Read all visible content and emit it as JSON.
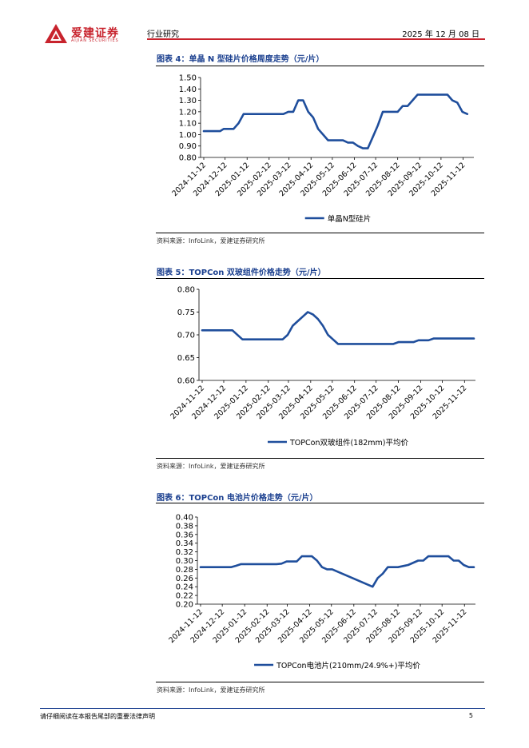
{
  "header": {
    "logo_cn": "爱建证券",
    "logo_en": "AIJIAN SECURITIES",
    "section": "行业研究",
    "date": "2025 年 12 月 08 日",
    "accent_color": "#c8232d"
  },
  "figures": [
    {
      "title": "图表 4：单晶 N 型硅片价格周度走势（元/片）",
      "source": "资料来源：InfoLink，爱建证券研究所"
    },
    {
      "title": "图表 5：TOPCon 双玻组件价格走势（元/片）",
      "source": "资料来源：InfoLink，爱建证券研究所"
    },
    {
      "title": "图表 6：TOPCon 电池片价格走势（元/片）",
      "source": "资料来源：InfoLink，爱建证券研究所"
    }
  ],
  "chart_data": [
    {
      "type": "line",
      "x_ticks": [
        "2024-11-12",
        "2024-12-12",
        "2025-01-12",
        "2025-02-12",
        "2025-03-12",
        "2025-04-12",
        "2025-05-12",
        "2025-06-12",
        "2025-07-12",
        "2025-08-12",
        "2025-09-12",
        "2025-10-12",
        "2025-11-12"
      ],
      "y_ticks": [
        "0.80",
        "0.90",
        "1.00",
        "1.10",
        "1.20",
        "1.30",
        "1.40",
        "1.50"
      ],
      "ylim": [
        0.8,
        1.5
      ],
      "line_color": "#1f4e9c",
      "series": [
        {
          "name": "单晶N型硅片",
          "points": [
            [
              "2024-11-12",
              1.03
            ],
            [
              "2024-12-05",
              1.03
            ],
            [
              "2024-12-10",
              1.05
            ],
            [
              "2024-12-24",
              1.05
            ],
            [
              "2024-12-31",
              1.1
            ],
            [
              "2025-01-07",
              1.18
            ],
            [
              "2025-02-25",
              1.18
            ],
            [
              "2025-03-04",
              1.18
            ],
            [
              "2025-03-11",
              1.2
            ],
            [
              "2025-03-18",
              1.2
            ],
            [
              "2025-03-25",
              1.3
            ],
            [
              "2025-04-01",
              1.3
            ],
            [
              "2025-04-08",
              1.2
            ],
            [
              "2025-04-15",
              1.15
            ],
            [
              "2025-04-22",
              1.05
            ],
            [
              "2025-04-29",
              1.0
            ],
            [
              "2025-05-06",
              0.95
            ],
            [
              "2025-05-27",
              0.95
            ],
            [
              "2025-06-03",
              0.93
            ],
            [
              "2025-06-10",
              0.93
            ],
            [
              "2025-06-17",
              0.9
            ],
            [
              "2025-06-24",
              0.88
            ],
            [
              "2025-07-01",
              0.88
            ],
            [
              "2025-07-08",
              0.98
            ],
            [
              "2025-07-15",
              1.08
            ],
            [
              "2025-07-22",
              1.2
            ],
            [
              "2025-08-12",
              1.2
            ],
            [
              "2025-08-19",
              1.25
            ],
            [
              "2025-08-26",
              1.25
            ],
            [
              "2025-09-02",
              1.3
            ],
            [
              "2025-09-09",
              1.35
            ],
            [
              "2025-10-07",
              1.35
            ],
            [
              "2025-10-14",
              1.35
            ],
            [
              "2025-10-21",
              1.35
            ],
            [
              "2025-10-28",
              1.3
            ],
            [
              "2025-11-04",
              1.28
            ],
            [
              "2025-11-11",
              1.2
            ],
            [
              "2025-11-18",
              1.18
            ]
          ]
        }
      ]
    },
    {
      "type": "line",
      "x_ticks": [
        "2024-11-12",
        "2024-12-12",
        "2025-01-12",
        "2025-02-12",
        "2025-03-12",
        "2025-04-12",
        "2025-05-12",
        "2025-06-12",
        "2025-07-12",
        "2025-08-12",
        "2025-09-12",
        "2025-10-12",
        "2025-11-12"
      ],
      "y_ticks": [
        "0.60",
        "0.65",
        "0.70",
        "0.75",
        "0.80"
      ],
      "ylim": [
        0.6,
        0.8
      ],
      "line_color": "#1f4e9c",
      "series": [
        {
          "name": "TOPCon双玻组件(182mm)平均价",
          "points": [
            [
              "2024-11-12",
              0.71
            ],
            [
              "2024-12-24",
              0.71
            ],
            [
              "2025-01-07",
              0.69
            ],
            [
              "2025-02-18",
              0.69
            ],
            [
              "2025-02-25",
              0.69
            ],
            [
              "2025-03-04",
              0.69
            ],
            [
              "2025-03-11",
              0.7
            ],
            [
              "2025-03-18",
              0.72
            ],
            [
              "2025-03-25",
              0.73
            ],
            [
              "2025-04-01",
              0.74
            ],
            [
              "2025-04-08",
              0.75
            ],
            [
              "2025-04-15",
              0.745
            ],
            [
              "2025-04-22",
              0.735
            ],
            [
              "2025-04-29",
              0.72
            ],
            [
              "2025-05-06",
              0.7
            ],
            [
              "2025-05-13",
              0.69
            ],
            [
              "2025-05-20",
              0.68
            ],
            [
              "2025-07-29",
              0.68
            ],
            [
              "2025-08-05",
              0.68
            ],
            [
              "2025-08-12",
              0.684
            ],
            [
              "2025-08-19",
              0.684
            ],
            [
              "2025-09-02",
              0.684
            ],
            [
              "2025-09-09",
              0.688
            ],
            [
              "2025-09-23",
              0.688
            ],
            [
              "2025-09-30",
              0.692
            ],
            [
              "2025-11-25",
              0.692
            ]
          ]
        }
      ]
    },
    {
      "type": "line",
      "x_ticks": [
        "2024-11-12",
        "2024-12-12",
        "2025-01-12",
        "2025-02-12",
        "2025-03-12",
        "2025-04-12",
        "2025-05-12",
        "2025-06-12",
        "2025-07-12",
        "2025-08-12",
        "2025-09-12",
        "2025-10-12",
        "2025-11-12"
      ],
      "y_ticks": [
        "0.20",
        "0.22",
        "0.24",
        "0.26",
        "0.28",
        "0.30",
        "0.32",
        "0.34",
        "0.36",
        "0.38",
        "0.40"
      ],
      "ylim": [
        0.2,
        0.4
      ],
      "line_color": "#1f4e9c",
      "series": [
        {
          "name": "TOPCon电池片(210mm/24.9%+)平均价",
          "points": [
            [
              "2024-11-12",
              0.285
            ],
            [
              "2024-12-24",
              0.285
            ],
            [
              "2024-12-31",
              0.288
            ],
            [
              "2025-01-07",
              0.292
            ],
            [
              "2025-02-25",
              0.292
            ],
            [
              "2025-03-04",
              0.293
            ],
            [
              "2025-03-11",
              0.298
            ],
            [
              "2025-03-25",
              0.298
            ],
            [
              "2025-04-01",
              0.31
            ],
            [
              "2025-04-15",
              0.31
            ],
            [
              "2025-04-22",
              0.3
            ],
            [
              "2025-04-29",
              0.285
            ],
            [
              "2025-05-06",
              0.28
            ],
            [
              "2025-05-13",
              0.28
            ],
            [
              "2025-07-08",
              0.24
            ],
            [
              "2025-07-15",
              0.26
            ],
            [
              "2025-07-22",
              0.27
            ],
            [
              "2025-07-29",
              0.285
            ],
            [
              "2025-08-12",
              0.285
            ],
            [
              "2025-08-26",
              0.29
            ],
            [
              "2025-09-09",
              0.3
            ],
            [
              "2025-09-16",
              0.3
            ],
            [
              "2025-09-23",
              0.31
            ],
            [
              "2025-10-21",
              0.31
            ],
            [
              "2025-10-28",
              0.3
            ],
            [
              "2025-11-04",
              0.3
            ],
            [
              "2025-11-11",
              0.29
            ],
            [
              "2025-11-18",
              0.285
            ],
            [
              "2025-11-25",
              0.285
            ]
          ]
        }
      ]
    }
  ],
  "footer": {
    "disclaimer": "请仔细阅读在本报告尾部的重要法律声明",
    "page": "5",
    "accent_color": "#1a3f8f"
  }
}
